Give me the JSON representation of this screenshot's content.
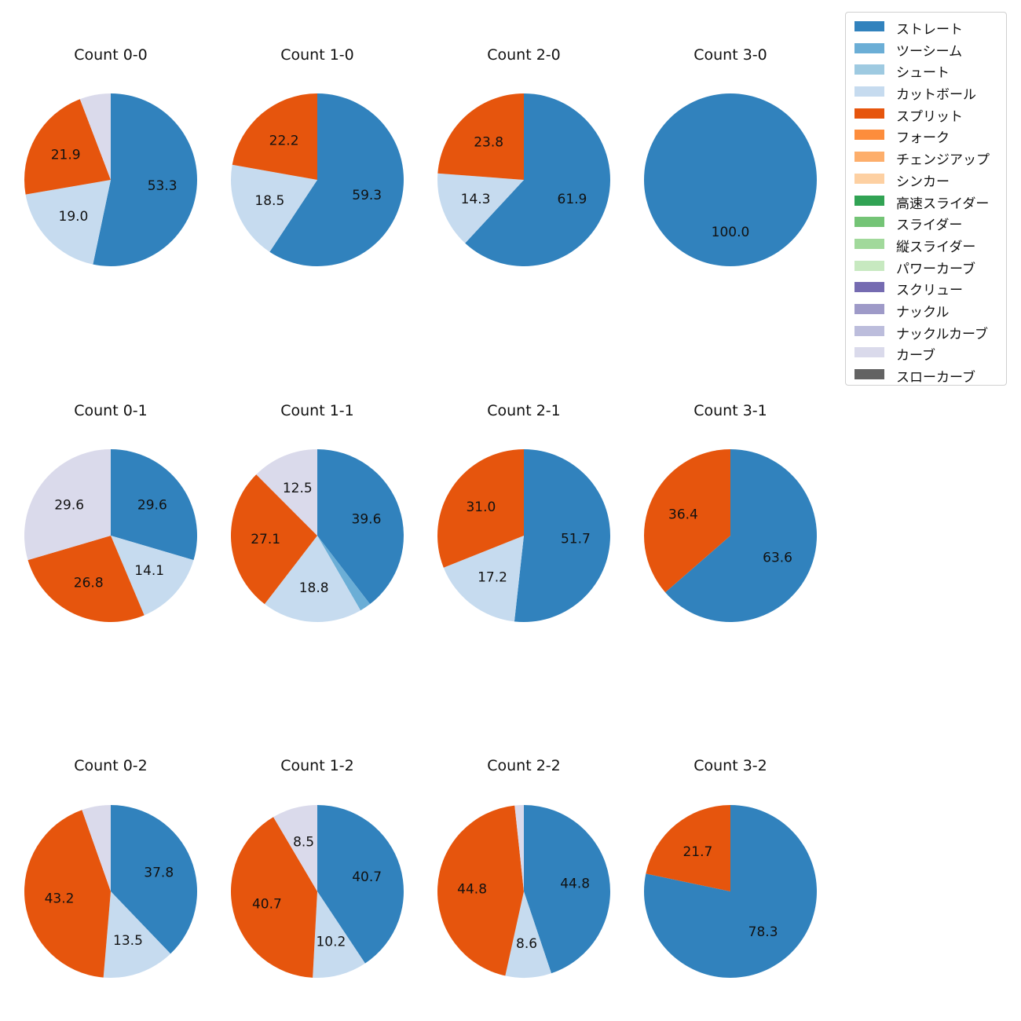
{
  "legend": [
    {
      "name": "ストレート",
      "color": "#3182bd"
    },
    {
      "name": "ツーシーム",
      "color": "#6baed6"
    },
    {
      "name": "シュート",
      "color": "#9ecae1"
    },
    {
      "name": "カットボール",
      "color": "#c6dbef"
    },
    {
      "name": "スプリット",
      "color": "#e6550d"
    },
    {
      "name": "フォーク",
      "color": "#fd8d3c"
    },
    {
      "name": "チェンジアップ",
      "color": "#fdae6b"
    },
    {
      "name": "シンカー",
      "color": "#fdd0a2"
    },
    {
      "name": "高速スライダー",
      "color": "#31a354"
    },
    {
      "name": "スライダー",
      "color": "#74c476"
    },
    {
      "name": "縦スライダー",
      "color": "#a1d99b"
    },
    {
      "name": "パワーカーブ",
      "color": "#c7e9c0"
    },
    {
      "name": "スクリュー",
      "color": "#756bb1"
    },
    {
      "name": "ナックル",
      "color": "#9e9ac8"
    },
    {
      "name": "ナックルカーブ",
      "color": "#bcbddc"
    },
    {
      "name": "カーブ",
      "color": "#dadaeb"
    },
    {
      "name": "スローカーブ",
      "color": "#636363"
    }
  ],
  "chart_data": [
    {
      "type": "pie",
      "title": "Count 0-0",
      "slices": [
        {
          "name": "ストレート",
          "value": 53.3,
          "label": "53.3"
        },
        {
          "name": "カットボール",
          "value": 19.0,
          "label": "19.0"
        },
        {
          "name": "スプリット",
          "value": 21.9,
          "label": "21.9"
        },
        {
          "name": "カーブ",
          "value": 5.8,
          "label": ""
        }
      ]
    },
    {
      "type": "pie",
      "title": "Count 1-0",
      "slices": [
        {
          "name": "ストレート",
          "value": 59.3,
          "label": "59.3"
        },
        {
          "name": "カットボール",
          "value": 18.5,
          "label": "18.5"
        },
        {
          "name": "スプリット",
          "value": 22.2,
          "label": "22.2"
        }
      ]
    },
    {
      "type": "pie",
      "title": "Count 2-0",
      "slices": [
        {
          "name": "ストレート",
          "value": 61.9,
          "label": "61.9"
        },
        {
          "name": "カットボール",
          "value": 14.3,
          "label": "14.3"
        },
        {
          "name": "スプリット",
          "value": 23.8,
          "label": "23.8"
        }
      ]
    },
    {
      "type": "pie",
      "title": "Count 3-0",
      "slices": [
        {
          "name": "ストレート",
          "value": 100.0,
          "label": "100.0"
        }
      ]
    },
    {
      "type": "pie",
      "title": "Count 0-1",
      "slices": [
        {
          "name": "ストレート",
          "value": 29.6,
          "label": "29.6"
        },
        {
          "name": "カットボール",
          "value": 14.1,
          "label": "14.1"
        },
        {
          "name": "スプリット",
          "value": 26.8,
          "label": "26.8"
        },
        {
          "name": "カーブ",
          "value": 29.6,
          "label": "29.6"
        }
      ]
    },
    {
      "type": "pie",
      "title": "Count 1-1",
      "slices": [
        {
          "name": "ストレート",
          "value": 39.6,
          "label": "39.6"
        },
        {
          "name": "ツーシーム",
          "value": 2.1,
          "label": ""
        },
        {
          "name": "カットボール",
          "value": 18.8,
          "label": "18.8"
        },
        {
          "name": "スプリット",
          "value": 27.1,
          "label": "27.1"
        },
        {
          "name": "カーブ",
          "value": 12.5,
          "label": "12.5"
        }
      ]
    },
    {
      "type": "pie",
      "title": "Count 2-1",
      "slices": [
        {
          "name": "ストレート",
          "value": 51.7,
          "label": "51.7"
        },
        {
          "name": "カットボール",
          "value": 17.2,
          "label": "17.2"
        },
        {
          "name": "スプリット",
          "value": 31.0,
          "label": "31.0"
        }
      ]
    },
    {
      "type": "pie",
      "title": "Count 3-1",
      "slices": [
        {
          "name": "ストレート",
          "value": 63.6,
          "label": "63.6"
        },
        {
          "name": "スプリット",
          "value": 36.4,
          "label": "36.4"
        }
      ]
    },
    {
      "type": "pie",
      "title": "Count 0-2",
      "slices": [
        {
          "name": "ストレート",
          "value": 37.8,
          "label": "37.8"
        },
        {
          "name": "カットボール",
          "value": 13.5,
          "label": "13.5"
        },
        {
          "name": "スプリット",
          "value": 43.2,
          "label": "43.2"
        },
        {
          "name": "カーブ",
          "value": 5.4,
          "label": ""
        }
      ]
    },
    {
      "type": "pie",
      "title": "Count 1-2",
      "slices": [
        {
          "name": "ストレート",
          "value": 40.7,
          "label": "40.7"
        },
        {
          "name": "カットボール",
          "value": 10.2,
          "label": "10.2"
        },
        {
          "name": "スプリット",
          "value": 40.7,
          "label": "40.7"
        },
        {
          "name": "カーブ",
          "value": 8.5,
          "label": "8.5"
        }
      ]
    },
    {
      "type": "pie",
      "title": "Count 2-2",
      "slices": [
        {
          "name": "ストレート",
          "value": 44.8,
          "label": "44.8"
        },
        {
          "name": "カットボール",
          "value": 8.6,
          "label": "8.6"
        },
        {
          "name": "スプリット",
          "value": 44.8,
          "label": "44.8"
        },
        {
          "name": "カーブ",
          "value": 1.7,
          "label": ""
        }
      ]
    },
    {
      "type": "pie",
      "title": "Count 3-2",
      "slices": [
        {
          "name": "ストレート",
          "value": 78.3,
          "label": "78.3"
        },
        {
          "name": "スプリット",
          "value": 21.7,
          "label": "21.7"
        }
      ]
    }
  ]
}
